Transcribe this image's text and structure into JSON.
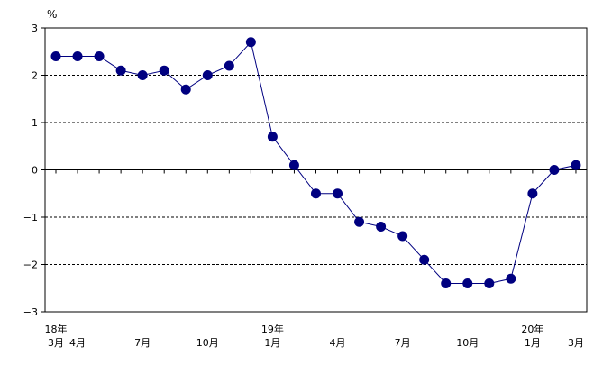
{
  "chart_data": {
    "type": "line",
    "unit_label": "%",
    "ylim": [
      -3,
      3
    ],
    "yticks": [
      "3",
      "2",
      "1",
      "0",
      "−1",
      "−2",
      "−3"
    ],
    "grid": "dashed horizontal at ±1, ±2",
    "x": [
      "18-03",
      "18-04",
      "18-05",
      "18-06",
      "18-07",
      "18-08",
      "18-09",
      "18-10",
      "18-11",
      "18-12",
      "19-01",
      "19-02",
      "19-03",
      "19-04",
      "19-05",
      "19-06",
      "19-07",
      "19-08",
      "19-09",
      "19-10",
      "19-11",
      "19-12",
      "20-01",
      "20-02",
      "20-03"
    ],
    "series": [
      {
        "values": [
          2.4,
          2.4,
          2.4,
          2.1,
          2.0,
          2.1,
          1.7,
          2.0,
          2.2,
          2.7,
          0.7,
          0.1,
          -0.5,
          -0.5,
          -1.1,
          -1.2,
          -1.4,
          -1.9,
          -2.4,
          -2.4,
          -2.4,
          -2.3,
          -0.5,
          0.0,
          0.1
        ],
        "color": "#000080"
      }
    ],
    "x_tick_labels": [
      {
        "index": 0,
        "year": "18年",
        "month": "3月"
      },
      {
        "index": 1,
        "year": "",
        "month": "4月"
      },
      {
        "index": 4,
        "year": "",
        "month": "7月"
      },
      {
        "index": 7,
        "year": "",
        "month": "10月"
      },
      {
        "index": 10,
        "year": "19年",
        "month": "1月"
      },
      {
        "index": 13,
        "year": "",
        "month": "4月"
      },
      {
        "index": 16,
        "year": "",
        "month": "7月"
      },
      {
        "index": 19,
        "year": "",
        "month": "10月"
      },
      {
        "index": 22,
        "year": "20年",
        "month": "1月"
      },
      {
        "index": 24,
        "year": "",
        "month": "3月"
      }
    ]
  }
}
